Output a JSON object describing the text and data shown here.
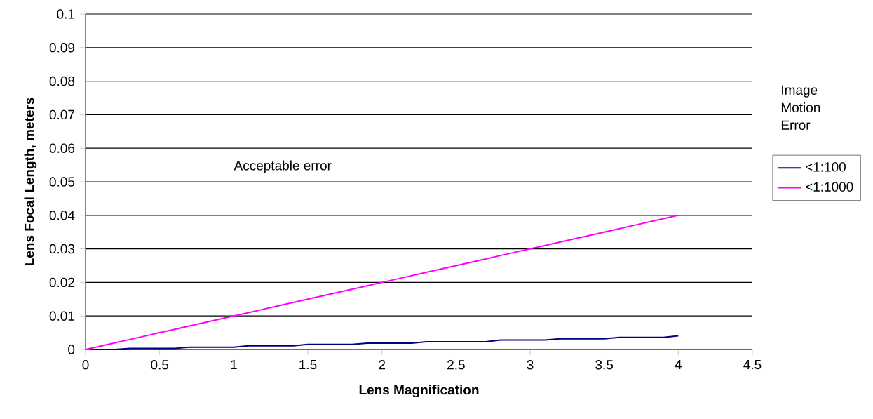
{
  "chart_data": {
    "type": "line",
    "xlabel": "Lens Magnification",
    "ylabel": "Lens Focal Length, meters",
    "legend_title": "Image Motion Error",
    "x": [
      0,
      0.1,
      0.2,
      0.3,
      0.4,
      0.5,
      0.6,
      0.7,
      0.8,
      0.9,
      1.0,
      1.1,
      1.2,
      1.3,
      1.4,
      1.5,
      1.6,
      1.7,
      1.8,
      1.9,
      2.0,
      2.1,
      2.2,
      2.3,
      2.4,
      2.5,
      2.6,
      2.7,
      2.8,
      2.9,
      3.0,
      3.1,
      3.2,
      3.3,
      3.4,
      3.5,
      3.6,
      3.7,
      3.8,
      3.9,
      4.0
    ],
    "series": [
      {
        "name": "<1:100",
        "color": "#000080",
        "values": [
          0,
          0,
          0,
          0.0003,
          0.0003,
          0.0003,
          0.0003,
          0.0007,
          0.0007,
          0.0007,
          0.0007,
          0.0011,
          0.0011,
          0.0011,
          0.0011,
          0.0015,
          0.0015,
          0.0015,
          0.0015,
          0.0019,
          0.0019,
          0.0019,
          0.0019,
          0.0023,
          0.0023,
          0.0023,
          0.0023,
          0.0023,
          0.0028,
          0.0028,
          0.0028,
          0.0028,
          0.0032,
          0.0032,
          0.0032,
          0.0032,
          0.0036,
          0.0036,
          0.0036,
          0.0036,
          0.0041
        ]
      },
      {
        "name": "<1:1000",
        "color": "#ff00ff",
        "values": [
          0,
          0.001,
          0.002,
          0.003,
          0.004,
          0.005,
          0.006,
          0.007,
          0.008,
          0.009,
          0.01,
          0.011,
          0.012,
          0.013,
          0.014,
          0.015,
          0.016,
          0.017,
          0.018,
          0.019,
          0.02,
          0.021,
          0.022,
          0.023,
          0.024,
          0.025,
          0.026,
          0.027,
          0.028,
          0.029,
          0.03,
          0.031,
          0.032,
          0.033,
          0.034,
          0.035,
          0.036,
          0.037,
          0.038,
          0.039,
          0.04
        ]
      }
    ],
    "xlim": [
      0,
      4.5
    ],
    "xticks": [
      0,
      0.5,
      1,
      1.5,
      2,
      2.5,
      3,
      3.5,
      4,
      4.5
    ],
    "ylim": [
      0,
      0.1
    ],
    "yticks": [
      0,
      0.01,
      0.02,
      0.03,
      0.04,
      0.05,
      0.06,
      0.07,
      0.08,
      0.09,
      0.1
    ],
    "grid": "y",
    "legend": "right",
    "marker": "none",
    "line_style": "solid",
    "annotations": [
      "Acceptable error"
    ]
  }
}
